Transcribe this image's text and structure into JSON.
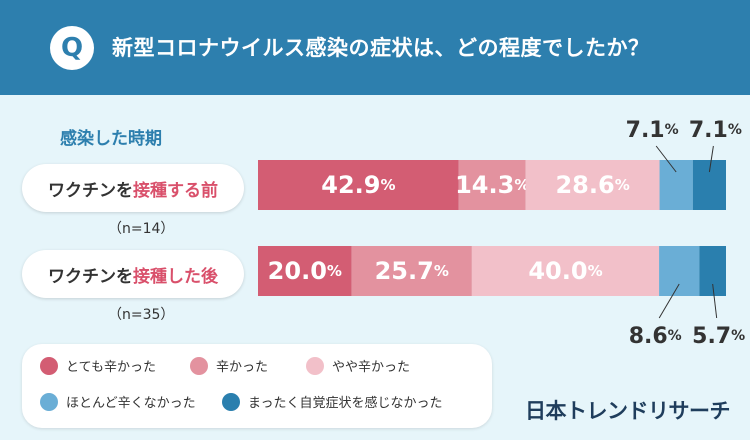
{
  "header": {
    "badge": "Q",
    "title": "新型コロナウイルス感染の症状は、どの程度でしたか？"
  },
  "period_label": "感染した時期",
  "rows": [
    {
      "label_pre": "ワクチンを",
      "label_emph": "接種する前",
      "n": "（n=14）"
    },
    {
      "label_pre": "ワクチンを",
      "label_emph": "接種した後",
      "n": "（n=35）"
    }
  ],
  "legend": [
    {
      "label": "とても辛かった",
      "color": "#d35d73"
    },
    {
      "label": "辛かった",
      "color": "#e3929f"
    },
    {
      "label": "やや辛かった",
      "color": "#f2c0c9"
    },
    {
      "label": "ほとんど辛くなかった",
      "color": "#6aaed6"
    },
    {
      "label": "まったく自覚症状を感じなかった",
      "color": "#2a7fae"
    }
  ],
  "brand": "日本トレンドリサーチ",
  "chart_data": {
    "type": "bar",
    "orientation": "horizontal-stacked-100",
    "categories": [
      "ワクチンを接種する前",
      "ワクチンを接種した後"
    ],
    "unit": "%",
    "series": [
      {
        "name": "とても辛かった",
        "values": [
          42.9,
          20.0
        ],
        "color": "#d35d73"
      },
      {
        "name": "辛かった",
        "values": [
          14.3,
          25.7
        ],
        "color": "#e3929f"
      },
      {
        "name": "やや辛かった",
        "values": [
          28.6,
          40.0
        ],
        "color": "#f2c0c9"
      },
      {
        "name": "ほとんど辛くなかった",
        "values": [
          7.1,
          8.6
        ],
        "color": "#6aaed6"
      },
      {
        "name": "まったく自覚症状を感じなかった",
        "values": [
          7.1,
          5.7
        ],
        "color": "#2a7fae"
      }
    ]
  }
}
